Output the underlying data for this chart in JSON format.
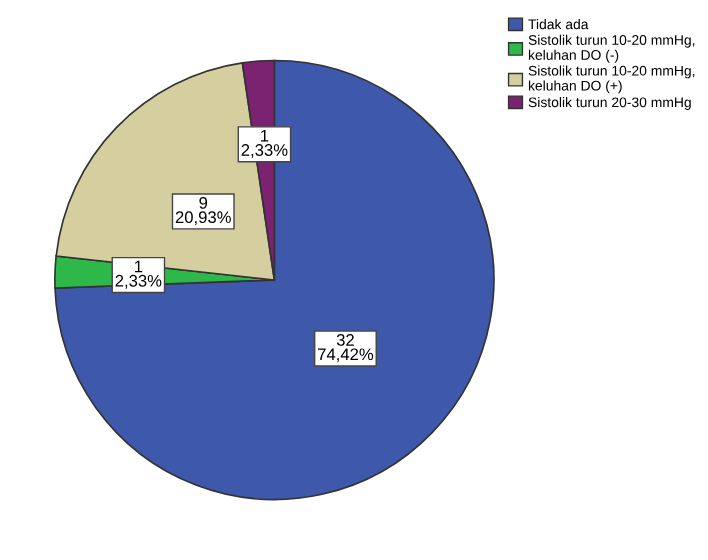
{
  "chart_data": {
    "type": "pie",
    "categories": [
      "Tidak ada",
      "Sistolik turun 10-20 mmHg, keluhan DO (-)",
      "Sistolik turun 10-20 mmHg, keluhan DO (+)",
      "Sistolik turun 20-30 mmHg"
    ],
    "values": [
      32,
      1,
      9,
      1
    ],
    "colors": [
      "#3e58ac",
      "#2eb84a",
      "#d5cfa0",
      "#7b2270"
    ],
    "value_labels": [
      "32\n74,42%",
      "1\n2,33%",
      "9\n20,93%",
      "1\n2,33%"
    ],
    "legend": "top right"
  }
}
